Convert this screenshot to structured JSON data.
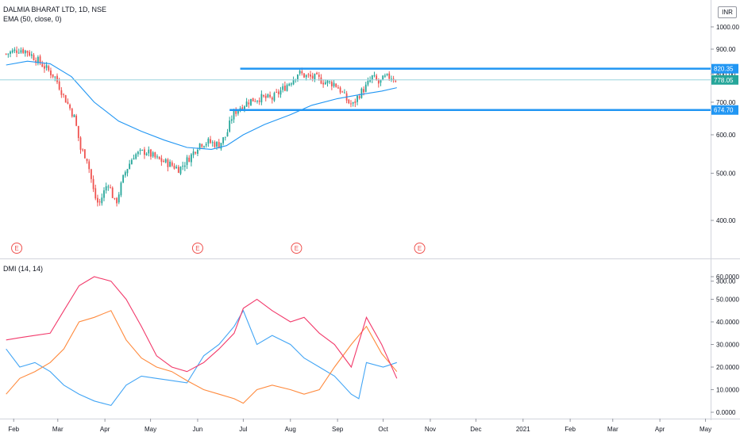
{
  "header": {
    "symbol_line": "DALMIA BHARAT LTD, 1D, NSE",
    "indicator_line": "EMA (50, close, 0)",
    "currency_button": "INR"
  },
  "lower_pane": {
    "indicator_label": "DMI (14, 14)"
  },
  "colors": {
    "up_candle": "#26a69a",
    "down_candle": "#ef5350",
    "ema": "#2196f3",
    "level_line": "#2196f3",
    "last_price_line": "#9ad4dd",
    "plus_di": "#42a5f5",
    "minus_di": "#ff8a3d",
    "adx": "#f23a6b",
    "grid": "#ffffff",
    "axis_text": "#131722"
  },
  "chart_data": [
    {
      "type": "candlestick",
      "title": "DALMIA BHARAT LTD, 1D, NSE",
      "y_scale": "log",
      "ylim": [
        300,
        1000
      ],
      "y_ticks": [
        "1000.00",
        "900.00",
        "800.00",
        "700.00",
        "600.00",
        "500.00",
        "400.00",
        "300.00"
      ],
      "x_ticks": [
        "Feb",
        "Mar",
        "Apr",
        "May",
        "Jun",
        "Jul",
        "Aug",
        "Sep",
        "Oct",
        "Nov",
        "Dec",
        "2021",
        "Feb",
        "Mar",
        "Apr",
        "May"
      ],
      "price_points": [
        [
          "2020-01-27",
          880
        ],
        [
          "2020-02-05",
          900
        ],
        [
          "2020-02-10",
          890
        ],
        [
          "2020-02-20",
          835
        ],
        [
          "2020-02-28",
          790
        ],
        [
          "2020-03-05",
          720
        ],
        [
          "2020-03-12",
          650
        ],
        [
          "2020-03-16",
          560
        ],
        [
          "2020-03-20",
          540
        ],
        [
          "2020-03-25",
          450
        ],
        [
          "2020-03-28",
          430
        ],
        [
          "2020-04-03",
          480
        ],
        [
          "2020-04-08",
          430
        ],
        [
          "2020-04-14",
          500
        ],
        [
          "2020-04-20",
          545
        ],
        [
          "2020-04-28",
          555
        ],
        [
          "2020-05-05",
          535
        ],
        [
          "2020-05-12",
          525
        ],
        [
          "2020-05-20",
          510
        ],
        [
          "2020-05-28",
          545
        ],
        [
          "2020-06-02",
          575
        ],
        [
          "2020-06-08",
          580
        ],
        [
          "2020-06-15",
          572
        ],
        [
          "2020-06-20",
          600
        ],
        [
          "2020-06-24",
          660
        ],
        [
          "2020-06-28",
          680
        ],
        [
          "2020-07-05",
          705
        ],
        [
          "2020-07-12",
          715
        ],
        [
          "2020-07-20",
          712
        ],
        [
          "2020-07-27",
          745
        ],
        [
          "2020-08-02",
          778
        ],
        [
          "2020-08-06",
          805
        ],
        [
          "2020-08-12",
          790
        ],
        [
          "2020-08-18",
          785
        ],
        [
          "2020-08-24",
          770
        ],
        [
          "2020-08-30",
          765
        ],
        [
          "2020-09-03",
          740
        ],
        [
          "2020-09-08",
          700
        ],
        [
          "2020-09-11",
          690
        ],
        [
          "2020-09-15",
          725
        ],
        [
          "2020-09-20",
          755
        ],
        [
          "2020-09-24",
          790
        ],
        [
          "2020-09-28",
          765
        ],
        [
          "2020-10-02",
          785
        ],
        [
          "2020-10-06",
          790
        ],
        [
          "2020-10-10",
          778.05
        ]
      ],
      "ema_points": [
        [
          "2020-01-27",
          835
        ],
        [
          "2020-02-10",
          850
        ],
        [
          "2020-02-25",
          840
        ],
        [
          "2020-03-10",
          790
        ],
        [
          "2020-03-25",
          700
        ],
        [
          "2020-04-10",
          640
        ],
        [
          "2020-04-25",
          610
        ],
        [
          "2020-05-10",
          585
        ],
        [
          "2020-05-25",
          565
        ],
        [
          "2020-06-10",
          560
        ],
        [
          "2020-06-20",
          570
        ],
        [
          "2020-07-01",
          600
        ],
        [
          "2020-07-15",
          630
        ],
        [
          "2020-08-01",
          660
        ],
        [
          "2020-08-15",
          690
        ],
        [
          "2020-09-01",
          712
        ],
        [
          "2020-09-15",
          725
        ],
        [
          "2020-09-30",
          738
        ],
        [
          "2020-10-10",
          750
        ]
      ],
      "levels": [
        {
          "price": 820.35,
          "label": "820.35",
          "from": "2020-06-29",
          "kind": "resistance"
        },
        {
          "price": 674.7,
          "label": "674.70",
          "from": "2020-06-22",
          "kind": "support"
        }
      ],
      "last_price": 778.05,
      "last_price_label": "778.05",
      "earnings_markers": [
        "2020-02-03",
        "2020-06-01",
        "2020-08-05",
        "2020-10-25"
      ],
      "earnings_marker_text": "E"
    },
    {
      "type": "line",
      "title": "DMI (14, 14)",
      "ylim": [
        0,
        65
      ],
      "y_ticks": [
        "60.0000",
        "50.0000",
        "40.0000",
        "30.0000",
        "20.0000",
        "10.0000",
        "0.0000"
      ],
      "series": [
        {
          "color": "#42a5f5",
          "points": [
            [
              "2020-01-27",
              28
            ],
            [
              "2020-02-05",
              20
            ],
            [
              "2020-02-15",
              22
            ],
            [
              "2020-02-25",
              18
            ],
            [
              "2020-03-05",
              12
            ],
            [
              "2020-03-15",
              8
            ],
            [
              "2020-03-25",
              5
            ],
            [
              "2020-04-05",
              3
            ],
            [
              "2020-04-15",
              12
            ],
            [
              "2020-04-25",
              16
            ],
            [
              "2020-05-05",
              15
            ],
            [
              "2020-05-15",
              14
            ],
            [
              "2020-05-25",
              13
            ],
            [
              "2020-06-05",
              25
            ],
            [
              "2020-06-15",
              30
            ],
            [
              "2020-06-25",
              38
            ],
            [
              "2020-07-01",
              45
            ],
            [
              "2020-07-10",
              30
            ],
            [
              "2020-07-20",
              34
            ],
            [
              "2020-08-01",
              30
            ],
            [
              "2020-08-10",
              24
            ],
            [
              "2020-08-20",
              20
            ],
            [
              "2020-08-30",
              16
            ],
            [
              "2020-09-10",
              8
            ],
            [
              "2020-09-15",
              6
            ],
            [
              "2020-09-20",
              22
            ],
            [
              "2020-10-01",
              20
            ],
            [
              "2020-10-10",
              22
            ]
          ]
        },
        {
          "color": "#ff8a3d",
          "points": [
            [
              "2020-01-27",
              8
            ],
            [
              "2020-02-05",
              15
            ],
            [
              "2020-02-15",
              18
            ],
            [
              "2020-02-25",
              22
            ],
            [
              "2020-03-05",
              28
            ],
            [
              "2020-03-15",
              40
            ],
            [
              "2020-03-25",
              42
            ],
            [
              "2020-04-05",
              45
            ],
            [
              "2020-04-15",
              32
            ],
            [
              "2020-04-25",
              24
            ],
            [
              "2020-05-05",
              20
            ],
            [
              "2020-05-15",
              18
            ],
            [
              "2020-05-25",
              14
            ],
            [
              "2020-06-05",
              10
            ],
            [
              "2020-06-15",
              8
            ],
            [
              "2020-06-25",
              6
            ],
            [
              "2020-07-01",
              4
            ],
            [
              "2020-07-10",
              10
            ],
            [
              "2020-07-20",
              12
            ],
            [
              "2020-08-01",
              10
            ],
            [
              "2020-08-10",
              8
            ],
            [
              "2020-08-20",
              10
            ],
            [
              "2020-08-30",
              20
            ],
            [
              "2020-09-10",
              30
            ],
            [
              "2020-09-20",
              38
            ],
            [
              "2020-09-30",
              26
            ],
            [
              "2020-10-10",
              18
            ]
          ]
        },
        {
          "color": "#f23a6b",
          "points": [
            [
              "2020-01-27",
              32
            ],
            [
              "2020-02-05",
              33
            ],
            [
              "2020-02-15",
              34
            ],
            [
              "2020-02-25",
              35
            ],
            [
              "2020-03-05",
              45
            ],
            [
              "2020-03-15",
              56
            ],
            [
              "2020-03-25",
              60
            ],
            [
              "2020-04-05",
              58
            ],
            [
              "2020-04-15",
              50
            ],
            [
              "2020-04-25",
              38
            ],
            [
              "2020-05-05",
              25
            ],
            [
              "2020-05-15",
              20
            ],
            [
              "2020-05-25",
              18
            ],
            [
              "2020-06-05",
              22
            ],
            [
              "2020-06-15",
              28
            ],
            [
              "2020-06-25",
              35
            ],
            [
              "2020-07-01",
              46
            ],
            [
              "2020-07-10",
              50
            ],
            [
              "2020-07-20",
              45
            ],
            [
              "2020-08-01",
              40
            ],
            [
              "2020-08-10",
              42
            ],
            [
              "2020-08-20",
              35
            ],
            [
              "2020-08-30",
              30
            ],
            [
              "2020-09-10",
              20
            ],
            [
              "2020-09-20",
              42
            ],
            [
              "2020-09-30",
              30
            ],
            [
              "2020-10-10",
              15
            ]
          ]
        }
      ]
    }
  ]
}
